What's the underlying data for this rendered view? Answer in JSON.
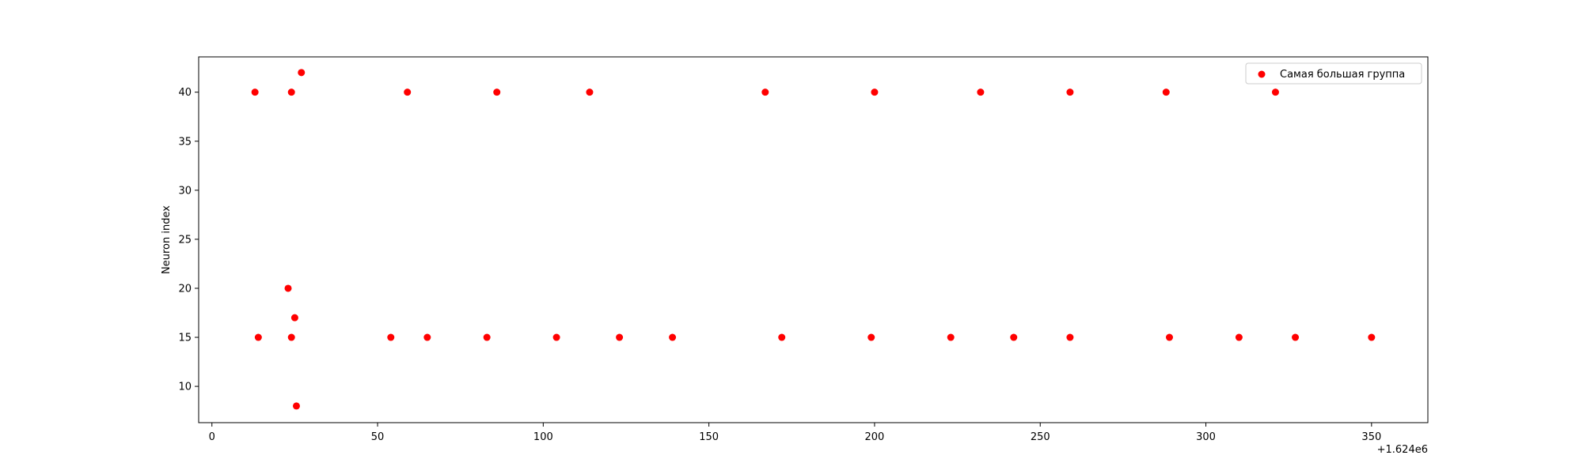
{
  "chart_data": {
    "type": "scatter",
    "title": "",
    "xlabel": "",
    "ylabel": "Neuron index",
    "x_offset_label": "+1.624e6",
    "xlim": [
      -4,
      367
    ],
    "ylim": [
      6.3,
      43.6
    ],
    "xticks": [
      0,
      50,
      100,
      150,
      200,
      250,
      300,
      350
    ],
    "yticks": [
      10,
      15,
      20,
      25,
      30,
      35,
      40
    ],
    "grid": false,
    "legend_position": "top-right",
    "series": [
      {
        "name": "Самая большая группа",
        "color": "#ff0000",
        "points": [
          {
            "x": 13,
            "y": 40
          },
          {
            "x": 24,
            "y": 40
          },
          {
            "x": 27,
            "y": 42
          },
          {
            "x": 59,
            "y": 40
          },
          {
            "x": 86,
            "y": 40
          },
          {
            "x": 114,
            "y": 40
          },
          {
            "x": 167,
            "y": 40
          },
          {
            "x": 200,
            "y": 40
          },
          {
            "x": 232,
            "y": 40
          },
          {
            "x": 259,
            "y": 40
          },
          {
            "x": 288,
            "y": 40
          },
          {
            "x": 321,
            "y": 40
          },
          {
            "x": 14,
            "y": 15
          },
          {
            "x": 23,
            "y": 20
          },
          {
            "x": 24,
            "y": 15
          },
          {
            "x": 25,
            "y": 17
          },
          {
            "x": 25.5,
            "y": 8
          },
          {
            "x": 54,
            "y": 15
          },
          {
            "x": 65,
            "y": 15
          },
          {
            "x": 83,
            "y": 15
          },
          {
            "x": 104,
            "y": 15
          },
          {
            "x": 123,
            "y": 15
          },
          {
            "x": 139,
            "y": 15
          },
          {
            "x": 172,
            "y": 15
          },
          {
            "x": 199,
            "y": 15
          },
          {
            "x": 223,
            "y": 15
          },
          {
            "x": 242,
            "y": 15
          },
          {
            "x": 259,
            "y": 15
          },
          {
            "x": 289,
            "y": 15
          },
          {
            "x": 310,
            "y": 15
          },
          {
            "x": 327,
            "y": 15
          },
          {
            "x": 350,
            "y": 15
          }
        ]
      }
    ]
  }
}
